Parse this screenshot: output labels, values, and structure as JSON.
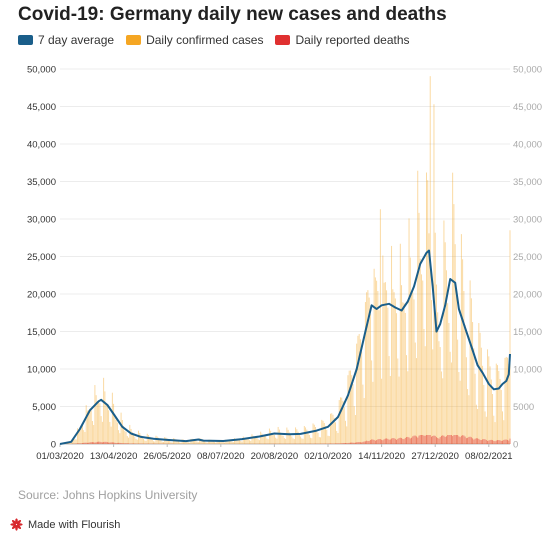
{
  "chart_data": {
    "type": "bar",
    "title": "Covid-19: Germany daily new cases and deaths",
    "legend_position": "top-left",
    "grid": true,
    "ylim": [
      0,
      50000
    ],
    "yticks": [
      "0",
      "5,000",
      "10,000",
      "15,000",
      "20,000",
      "25,000",
      "30,000",
      "35,000",
      "40,000",
      "45,000",
      "50,000"
    ],
    "yticks_right": [
      "0",
      "5000",
      "10,000",
      "15,000",
      "20,000",
      "25,000",
      "30,000",
      "35,000",
      "40,000",
      "45,000",
      "50,000"
    ],
    "x_start": "01/03/2020",
    "x_end": "25/02/2021",
    "xticks": [
      "01/03/2020",
      "13/04/2020",
      "26/05/2020",
      "08/07/2020",
      "20/08/2020",
      "02/10/2020",
      "14/11/2020",
      "27/12/2020",
      "08/02/2021"
    ],
    "series": [
      {
        "name": "7 day average",
        "type": "line",
        "color": "#1a5e8a",
        "points": [
          [
            "01/03/2020",
            0
          ],
          [
            "10/03/2020",
            300
          ],
          [
            "17/03/2020",
            2000
          ],
          [
            "25/03/2020",
            4500
          ],
          [
            "01/04/2020",
            5700
          ],
          [
            "03/04/2020",
            5900
          ],
          [
            "08/04/2020",
            5200
          ],
          [
            "13/04/2020",
            4000
          ],
          [
            "20/04/2020",
            2300
          ],
          [
            "27/04/2020",
            1400
          ],
          [
            "05/05/2020",
            950
          ],
          [
            "15/05/2020",
            700
          ],
          [
            "26/05/2020",
            550
          ],
          [
            "10/06/2020",
            380
          ],
          [
            "20/06/2020",
            600
          ],
          [
            "24/06/2020",
            450
          ],
          [
            "10/07/2020",
            400
          ],
          [
            "25/07/2020",
            650
          ],
          [
            "08/08/2020",
            1000
          ],
          [
            "20/08/2020",
            1400
          ],
          [
            "01/09/2020",
            1300
          ],
          [
            "10/09/2020",
            1350
          ],
          [
            "22/09/2020",
            1750
          ],
          [
            "02/10/2020",
            2300
          ],
          [
            "10/10/2020",
            3600
          ],
          [
            "18/10/2020",
            6500
          ],
          [
            "25/10/2020",
            10000
          ],
          [
            "01/11/2020",
            15000
          ],
          [
            "06/11/2020",
            18500
          ],
          [
            "10/11/2020",
            18000
          ],
          [
            "14/11/2020",
            18500
          ],
          [
            "20/11/2020",
            18700
          ],
          [
            "25/11/2020",
            18200
          ],
          [
            "30/11/2020",
            17800
          ],
          [
            "05/12/2020",
            19000
          ],
          [
            "10/12/2020",
            21000
          ],
          [
            "15/12/2020",
            24000
          ],
          [
            "20/12/2020",
            25500
          ],
          [
            "22/12/2020",
            25800
          ],
          [
            "25/12/2020",
            21000
          ],
          [
            "28/12/2020",
            15000
          ],
          [
            "31/12/2020",
            16000
          ],
          [
            "04/01/2021",
            18500
          ],
          [
            "08/01/2021",
            22000
          ],
          [
            "12/01/2021",
            21500
          ],
          [
            "15/01/2021",
            18000
          ],
          [
            "20/01/2021",
            15500
          ],
          [
            "25/01/2021",
            13000
          ],
          [
            "30/01/2021",
            10500
          ],
          [
            "03/02/2021",
            9500
          ],
          [
            "08/02/2021",
            8000
          ],
          [
            "12/02/2021",
            7300
          ],
          [
            "16/02/2021",
            7400
          ],
          [
            "19/02/2021",
            8000
          ],
          [
            "22/02/2021",
            8400
          ],
          [
            "24/02/2021",
            9300
          ],
          [
            "25/02/2021",
            12000
          ]
        ]
      },
      {
        "name": "Daily confirmed cases",
        "type": "bar",
        "color": "#f5a623",
        "notable_values": [
          [
            "20/12/2020",
            36200
          ],
          [
            "23/12/2020",
            49044
          ],
          [
            "26/12/2020",
            45300
          ],
          [
            "13/11/2020",
            31300
          ],
          [
            "25/02/2021",
            28500
          ]
        ]
      },
      {
        "name": "Daily reported deaths",
        "type": "bar",
        "color": "#e03030",
        "peak": 1200
      }
    ]
  },
  "source": "Source: Johns Hopkins University",
  "footer": {
    "label": "Made with Flourish",
    "logo_icon": "flourish-logo-icon"
  }
}
